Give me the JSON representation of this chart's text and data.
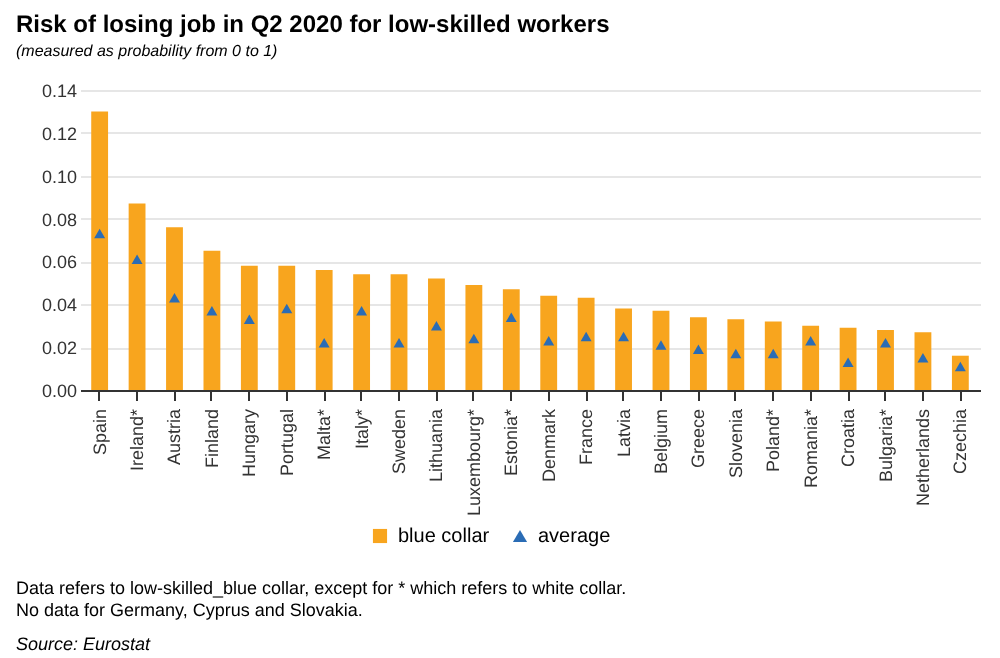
{
  "chart_data": {
    "type": "bar",
    "title": "Risk of losing job in Q2 2020 for low-skilled workers",
    "subtitle": "(measured as probability from 0 to 1)",
    "categories": [
      "Spain",
      "Ireland*",
      "Austria",
      "Finland",
      "Hungary",
      "Portugal",
      "Malta*",
      "Italy*",
      "Sweden",
      "Lithuania",
      "Luxembourg*",
      "Estonia*",
      "Denmark",
      "France",
      "Latvia",
      "Belgium",
      "Greece",
      "Slovenia",
      "Poland*",
      "Romania*",
      "Croatia",
      "Bulgaria*",
      "Netherlands",
      "Czechia"
    ],
    "series": [
      {
        "name": "blue collar",
        "type": "bar",
        "color": "#f8a51e",
        "values": [
          0.13,
          0.087,
          0.076,
          0.065,
          0.058,
          0.058,
          0.056,
          0.054,
          0.054,
          0.052,
          0.049,
          0.047,
          0.044,
          0.043,
          0.038,
          0.037,
          0.034,
          0.033,
          0.032,
          0.03,
          0.029,
          0.028,
          0.027,
          0.016
        ]
      },
      {
        "name": "average",
        "type": "scatter",
        "marker": "triangle",
        "color": "#2a6cb5",
        "values": [
          0.073,
          0.061,
          0.043,
          0.037,
          0.033,
          0.038,
          0.022,
          0.037,
          0.022,
          0.03,
          0.024,
          0.034,
          0.023,
          0.025,
          0.025,
          0.021,
          0.019,
          0.017,
          0.017,
          0.023,
          0.013,
          0.022,
          0.015,
          0.011
        ]
      }
    ],
    "ylim": [
      0,
      0.14
    ],
    "yticks": [
      {
        "value": 0,
        "label": "0.00"
      },
      {
        "value": 0.02,
        "label": "0.02"
      },
      {
        "value": 0.04,
        "label": "0.04"
      },
      {
        "value": 0.06,
        "label": "0.06"
      },
      {
        "value": 0.08,
        "label": "0.08"
      },
      {
        "value": 0.1,
        "label": "0.10"
      },
      {
        "value": 0.12,
        "label": "0.12"
      },
      {
        "value": 0.14,
        "label": "0.14"
      }
    ],
    "grid": "y",
    "legend": "bottom",
    "annotations": [
      "Data refers to low-skilled_blue collar, except for * which refers to white collar.",
      "No data for Germany, Cyprus and Slovakia.",
      "Source: Eurostat"
    ]
  }
}
